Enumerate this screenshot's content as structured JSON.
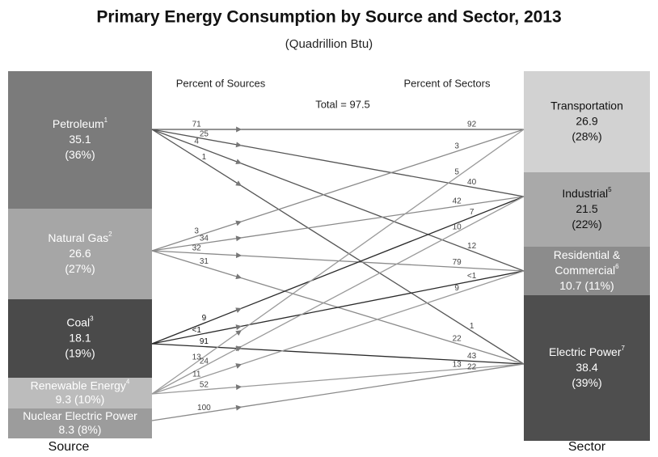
{
  "title": "Primary Energy Consumption by Source and Sector, 2013",
  "subtitle": "(Quadrillion Btu)",
  "headers": {
    "left": "Percent of Sources",
    "right": "Percent of Sectors",
    "total": "Total = 97.5"
  },
  "footers": {
    "left": "Source",
    "right": "Sector"
  },
  "sources": [
    {
      "lines": [
        {
          "text": "Petroleum",
          "sup": "1"
        },
        {
          "text": "35.1"
        },
        {
          "text": "(36%)"
        }
      ]
    },
    {
      "lines": [
        {
          "text": "Natural Gas",
          "sup": "2"
        },
        {
          "text": "26.6"
        },
        {
          "text": "(27%)"
        }
      ]
    },
    {
      "lines": [
        {
          "text": "Coal",
          "sup": "3"
        },
        {
          "text": "18.1"
        },
        {
          "text": "(19%)"
        }
      ]
    },
    {
      "lines": [
        {
          "text": "Renewable Energy",
          "sup": "4"
        },
        {
          "text": "9.3 (10%)"
        }
      ]
    },
    {
      "lines": [
        {
          "text": "Nuclear Electric Power"
        },
        {
          "text": "8.3 (8%)"
        }
      ]
    }
  ],
  "sectors": [
    {
      "lines": [
        {
          "text": "Transportation"
        },
        {
          "text": "26.9"
        },
        {
          "text": "(28%)"
        }
      ]
    },
    {
      "lines": [
        {
          "text": "Industrial",
          "sup": "5"
        },
        {
          "text": "21.5"
        },
        {
          "text": "(22%)"
        }
      ]
    },
    {
      "lines": [
        {
          "text": "Residential &"
        },
        {
          "text": "Commercial",
          "sup": "6"
        },
        {
          "text": "10.7 (11%)"
        }
      ]
    },
    {
      "lines": [
        {
          "text": "Electric Power",
          "sup": "7"
        },
        {
          "text": "38.4"
        },
        {
          "text": "(39%)"
        }
      ]
    }
  ],
  "flows": [
    {
      "from": 0,
      "to": 0,
      "source_pct": "71",
      "sector_pct": "92"
    },
    {
      "from": 0,
      "to": 1,
      "source_pct": "25",
      "sector_pct": "40"
    },
    {
      "from": 0,
      "to": 2,
      "source_pct": "4",
      "sector_pct": "12"
    },
    {
      "from": 0,
      "to": 3,
      "source_pct": "1",
      "sector_pct": "1"
    },
    {
      "from": 1,
      "to": 0,
      "source_pct": "3",
      "sector_pct": "3"
    },
    {
      "from": 1,
      "to": 1,
      "source_pct": "34",
      "sector_pct": "42"
    },
    {
      "from": 1,
      "to": 2,
      "source_pct": "32",
      "sector_pct": "79"
    },
    {
      "from": 1,
      "to": 3,
      "source_pct": "31",
      "sector_pct": "22"
    },
    {
      "from": 2,
      "to": 1,
      "source_pct": "9",
      "sector_pct": "7"
    },
    {
      "from": 2,
      "to": 2,
      "source_pct": "<1",
      "sector_pct": "<1"
    },
    {
      "from": 2,
      "to": 3,
      "source_pct": "91",
      "sector_pct": "43"
    },
    {
      "from": 3,
      "to": 0,
      "source_pct": "13",
      "sector_pct": "5"
    },
    {
      "from": 3,
      "to": 1,
      "source_pct": "24",
      "sector_pct": "10"
    },
    {
      "from": 3,
      "to": 2,
      "source_pct": "11",
      "sector_pct": "9"
    },
    {
      "from": 3,
      "to": 3,
      "source_pct": "52",
      "sector_pct": "13"
    },
    {
      "from": 4,
      "to": 3,
      "source_pct": "100",
      "sector_pct": "22"
    }
  ]
}
